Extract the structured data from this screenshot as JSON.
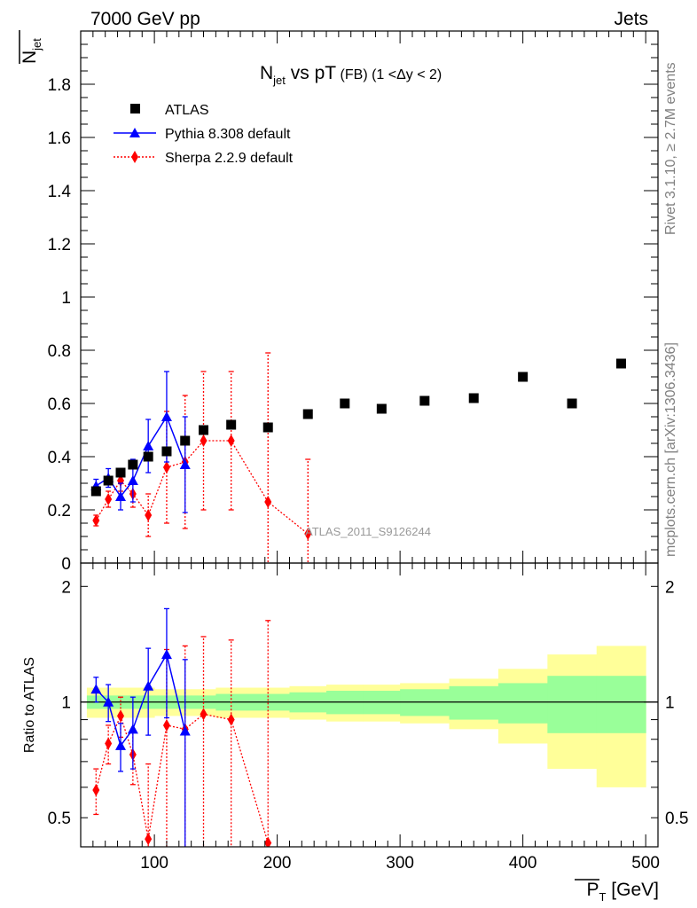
{
  "header": {
    "left": "7000 GeV pp",
    "right": "Jets",
    "side_top": "Rivet 3.1.10, ≥ 2.7M events",
    "side_bottom": "mcplots.cern.ch [arXiv:1306.3436]"
  },
  "chart_data": [
    {
      "panel": "main",
      "type": "scatter",
      "title_main": "N",
      "title_sub": "jet",
      "title_rest": " vs pT",
      "title_small": " (FB)  (1 <Δy < 2)",
      "ylabel_main": "N",
      "ylabel_sub": "jet",
      "watermark": "ATLAS_2011_S9126244",
      "xlim": [
        40,
        510
      ],
      "ylim": [
        0,
        2.0
      ],
      "yticks": [
        "0",
        "0.2",
        "0.4",
        "0.6",
        "0.8",
        "1",
        "1.2",
        "1.4",
        "1.6",
        "1.8"
      ],
      "legend_position": "top-left",
      "series": [
        {
          "name": "ATLAS",
          "color": "#000000",
          "marker": "square",
          "x": [
            52.5,
            62.5,
            72.5,
            82.5,
            95,
            110,
            125,
            140,
            162.5,
            192.5,
            225,
            255,
            285,
            320,
            360,
            400,
            440,
            480
          ],
          "y": [
            0.27,
            0.31,
            0.34,
            0.37,
            0.4,
            0.42,
            0.46,
            0.5,
            0.52,
            0.51,
            0.56,
            0.6,
            0.58,
            0.61,
            0.62,
            0.7,
            0.6,
            0.75
          ]
        },
        {
          "name": "Pythia 8.308 default",
          "color": "#0000ff",
          "marker": "triangle",
          "x": [
            52.5,
            62.5,
            72.5,
            82.5,
            95,
            110,
            125
          ],
          "y": [
            0.29,
            0.32,
            0.25,
            0.31,
            0.44,
            0.55,
            0.37
          ],
          "err": [
            0.025,
            0.035,
            0.05,
            0.08,
            0.1,
            0.17,
            0.18
          ]
        },
        {
          "name": "Sherpa 2.2.9 default",
          "color": "#ff0000",
          "marker": "diamond",
          "x": [
            52.5,
            62.5,
            72.5,
            82.5,
            95,
            110,
            125,
            140,
            162.5,
            192.5,
            225
          ],
          "y": [
            0.16,
            0.24,
            0.31,
            0.26,
            0.18,
            0.36,
            0.38,
            0.46,
            0.46,
            0.23,
            0.11
          ],
          "err": [
            0.02,
            0.03,
            0.04,
            0.05,
            0.08,
            0.21,
            0.25,
            0.26,
            0.26,
            0.56,
            0.28
          ]
        }
      ]
    },
    {
      "panel": "ratio",
      "type": "line",
      "ylabel": "Ratio to ATLAS",
      "xlabel_main": "P",
      "xlabel_sub": "T",
      "xlabel_unit": " [GeV]",
      "xticks": [
        "100",
        "200",
        "300",
        "400",
        "500"
      ],
      "yticks": [
        "0.5",
        "1",
        "2"
      ],
      "ylim": [
        0.42,
        2.3
      ],
      "yscale": "log",
      "bands": {
        "bins": [
          [
            45,
            60
          ],
          [
            60,
            70
          ],
          [
            70,
            80
          ],
          [
            80,
            90
          ],
          [
            90,
            100
          ],
          [
            100,
            120
          ],
          [
            120,
            130
          ],
          [
            130,
            150
          ],
          [
            150,
            175
          ],
          [
            175,
            210
          ],
          [
            210,
            240
          ],
          [
            240,
            270
          ],
          [
            270,
            300
          ],
          [
            300,
            340
          ],
          [
            340,
            380
          ],
          [
            380,
            420
          ],
          [
            420,
            460
          ],
          [
            460,
            500
          ]
        ],
        "stat_halfwidth": [
          0.04,
          0.04,
          0.04,
          0.04,
          0.04,
          0.04,
          0.04,
          0.04,
          0.05,
          0.05,
          0.06,
          0.07,
          0.07,
          0.08,
          0.1,
          0.12,
          0.17,
          0.17
        ],
        "total_halfwidth": [
          0.09,
          0.09,
          0.09,
          0.09,
          0.09,
          0.08,
          0.08,
          0.08,
          0.09,
          0.09,
          0.1,
          0.11,
          0.11,
          0.12,
          0.15,
          0.22,
          0.33,
          0.4
        ],
        "stat_color": "#99ff99",
        "total_color": "#ffff99"
      },
      "series": [
        {
          "name": "Pythia 8.308 default",
          "color": "#0000ff",
          "marker": "triangle",
          "x": [
            52.5,
            62.5,
            72.5,
            82.5,
            95,
            110,
            125
          ],
          "y": [
            1.08,
            1.0,
            0.77,
            0.85,
            1.1,
            1.33,
            0.84
          ],
          "err": [
            0.08,
            0.11,
            0.11,
            0.18,
            0.28,
            0.42,
            0.45
          ]
        },
        {
          "name": "Sherpa 2.2.9 default",
          "color": "#ff0000",
          "marker": "diamond",
          "x": [
            52.5,
            62.5,
            72.5,
            82.5,
            95,
            110,
            125,
            140,
            162.5,
            192.5
          ],
          "y": [
            0.59,
            0.78,
            0.92,
            0.73,
            0.44,
            0.87,
            0.85,
            0.93,
            0.9,
            0.43
          ],
          "err": [
            0.08,
            0.09,
            0.11,
            0.12,
            0.25,
            0.5,
            0.55,
            0.55,
            0.55,
            1.2
          ]
        }
      ]
    }
  ]
}
